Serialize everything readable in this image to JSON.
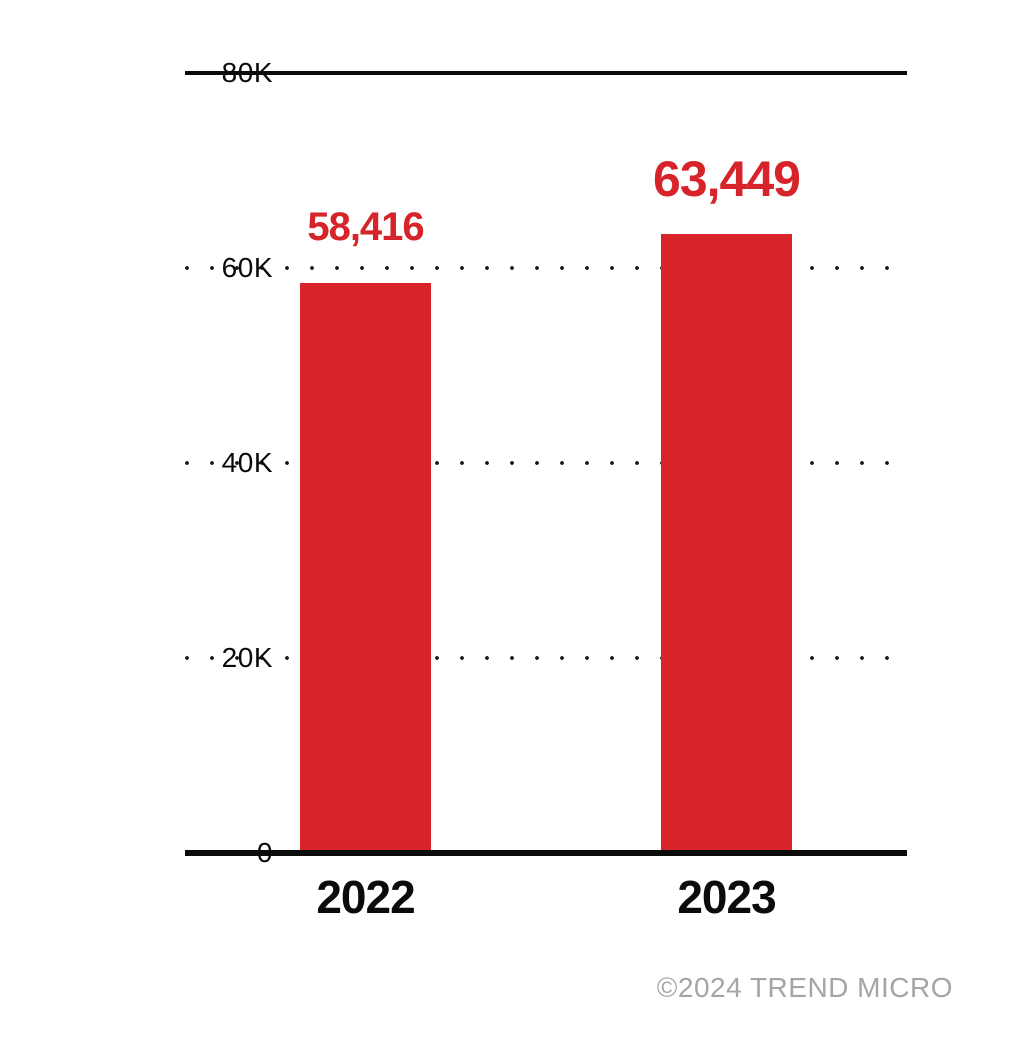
{
  "chart_data": {
    "type": "bar",
    "title": "",
    "categories": [
      "2022",
      "2023"
    ],
    "values": [
      58416,
      63449
    ],
    "value_labels": [
      "58,416",
      "63,449"
    ],
    "ylim": [
      0,
      80000
    ],
    "yticks": [
      {
        "value": 80000,
        "label": "80K"
      },
      {
        "value": 60000,
        "label": "60K"
      },
      {
        "value": 40000,
        "label": "40K"
      },
      {
        "value": 20000,
        "label": "20K"
      },
      {
        "value": 0,
        "label": "0"
      }
    ],
    "grid": {
      "horizontal": true,
      "style": "dotted",
      "solid_values": [
        80000,
        0
      ]
    },
    "legend": "none",
    "colors": {
      "bar": "#D7232A",
      "value_label": "#D7232A",
      "axis_line": "#0B0B0B",
      "tick_label": "#0B0B0B"
    }
  },
  "footer": {
    "text": "©2024 TREND MICRO",
    "color": "#A5A5A5"
  }
}
